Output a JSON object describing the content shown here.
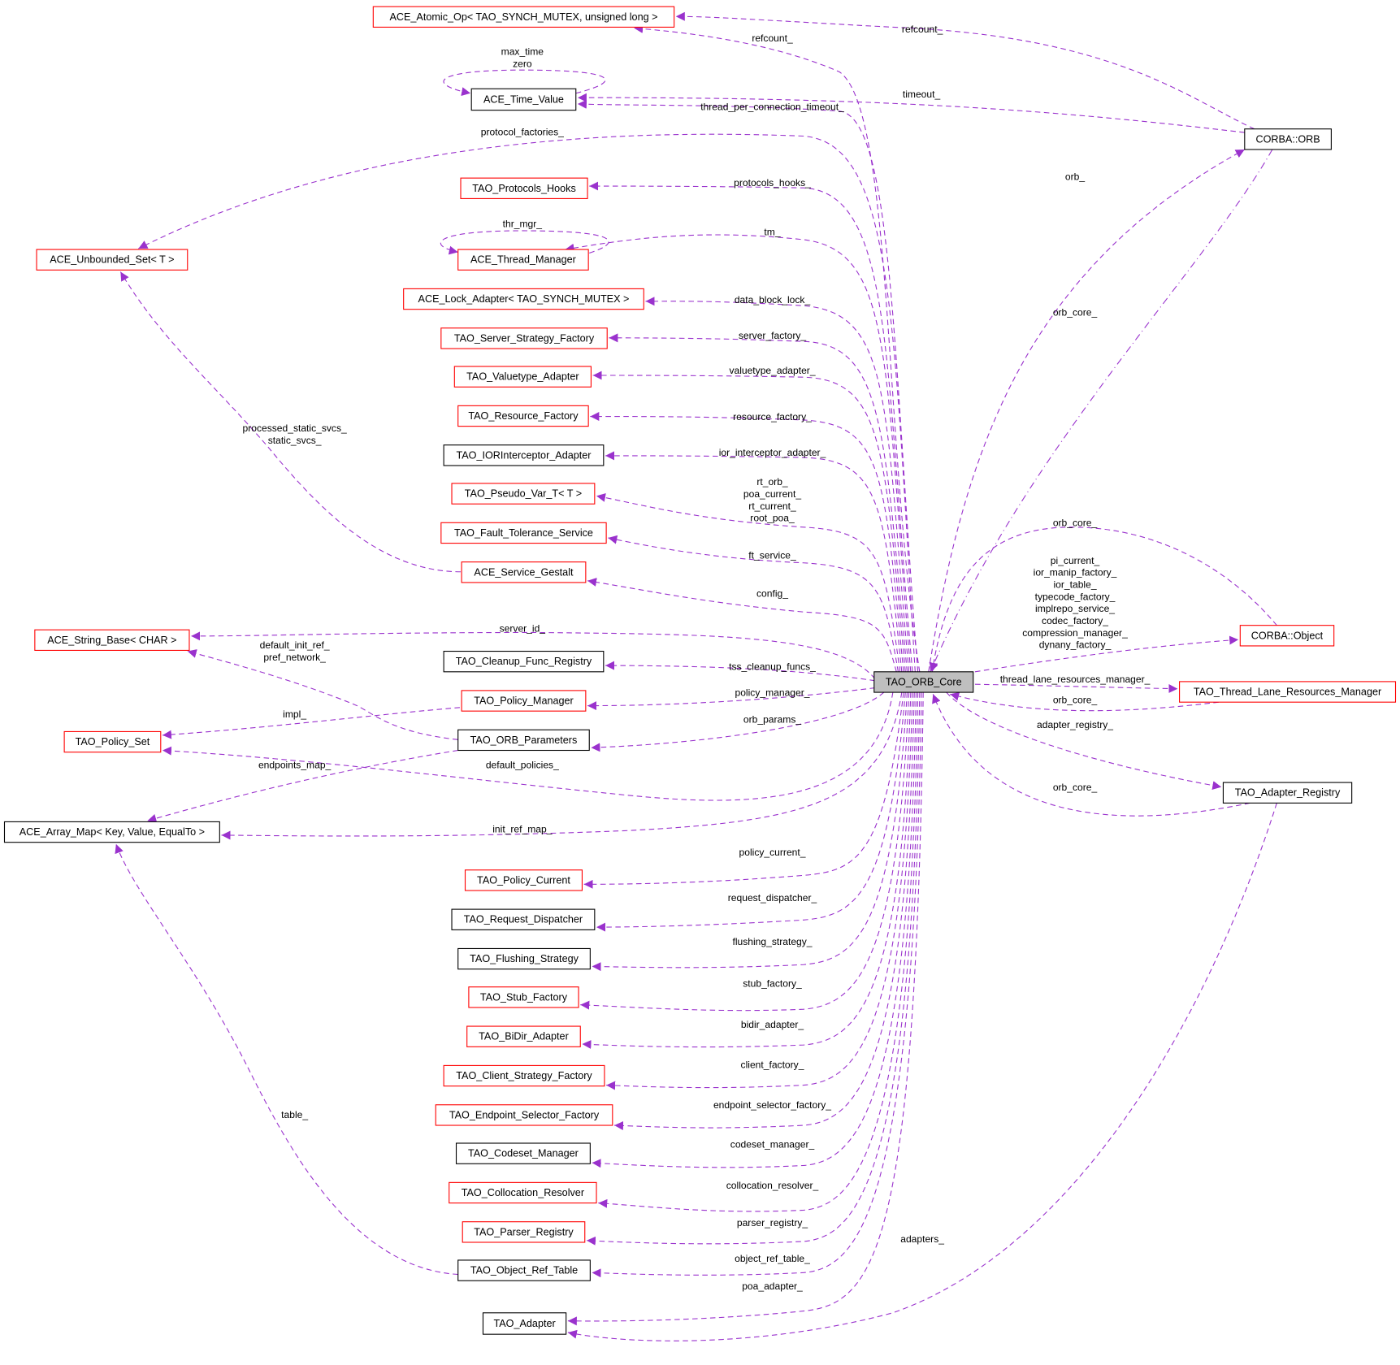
{
  "colors": {
    "edge": "#9a32cd",
    "documented_border": "#000000",
    "undocumented_border": "#ff0000",
    "focus_fill": "#bfbfbf"
  },
  "nodes": [
    {
      "label": "ACE_Atomic_Op< TAO_SYNCH_MUTEX, unsigned long >",
      "border": "red"
    },
    {
      "label": "ACE_Time_Value",
      "border": "black"
    },
    {
      "label": "CORBA::ORB",
      "border": "black"
    },
    {
      "label": "TAO_Protocols_Hooks",
      "border": "red"
    },
    {
      "label": "ACE_Unbounded_Set< T >",
      "border": "red"
    },
    {
      "label": "ACE_Thread_Manager",
      "border": "red"
    },
    {
      "label": "ACE_Lock_Adapter< TAO_SYNCH_MUTEX >",
      "border": "red"
    },
    {
      "label": "TAO_Server_Strategy_Factory",
      "border": "red"
    },
    {
      "label": "TAO_Valuetype_Adapter",
      "border": "red"
    },
    {
      "label": "TAO_Resource_Factory",
      "border": "red"
    },
    {
      "label": "TAO_IORInterceptor_Adapter",
      "border": "black"
    },
    {
      "label": "TAO_Pseudo_Var_T< T >",
      "border": "red"
    },
    {
      "label": "TAO_Fault_Tolerance_Service",
      "border": "red"
    },
    {
      "label": "ACE_Service_Gestalt",
      "border": "red"
    },
    {
      "label": "ACE_String_Base< CHAR >",
      "border": "red"
    },
    {
      "label": "CORBA::Object",
      "border": "red"
    },
    {
      "label": "TAO_Cleanup_Func_Registry",
      "border": "black"
    },
    {
      "label": "TAO_ORB_Core",
      "border": "black",
      "focus": true
    },
    {
      "label": "TAO_Thread_Lane_Resources_Manager",
      "border": "red"
    },
    {
      "label": "TAO_Policy_Manager",
      "border": "red"
    },
    {
      "label": "TAO_Policy_Set",
      "border": "red"
    },
    {
      "label": "TAO_ORB_Parameters",
      "border": "black"
    },
    {
      "label": "TAO_Adapter_Registry",
      "border": "black"
    },
    {
      "label": "ACE_Array_Map< Key, Value, EqualTo >",
      "border": "black"
    },
    {
      "label": "TAO_Policy_Current",
      "border": "red"
    },
    {
      "label": "TAO_Request_Dispatcher",
      "border": "black"
    },
    {
      "label": "TAO_Flushing_Strategy",
      "border": "black"
    },
    {
      "label": "TAO_Stub_Factory",
      "border": "red"
    },
    {
      "label": "TAO_BiDir_Adapter",
      "border": "red"
    },
    {
      "label": "TAO_Client_Strategy_Factory",
      "border": "red"
    },
    {
      "label": "TAO_Endpoint_Selector_Factory",
      "border": "red"
    },
    {
      "label": "TAO_Codeset_Manager",
      "border": "black"
    },
    {
      "label": "TAO_Collocation_Resolver",
      "border": "red"
    },
    {
      "label": "TAO_Parser_Registry",
      "border": "red"
    },
    {
      "label": "TAO_Object_Ref_Table",
      "border": "black"
    },
    {
      "label": "TAO_Adapter",
      "border": "black"
    }
  ],
  "edges": [
    {
      "from": "CORBA::ORB",
      "to": "ACE_Atomic_Op< TAO_SYNCH_MUTEX, unsigned long >",
      "label": [
        "refcount_"
      ]
    },
    {
      "from": "TAO_ORB_Core",
      "to": "ACE_Atomic_Op< TAO_SYNCH_MUTEX, unsigned long >",
      "label": [
        "refcount_"
      ]
    },
    {
      "from": "ACE_Time_Value",
      "to": "ACE_Time_Value",
      "label": [
        "max_time",
        "zero"
      ]
    },
    {
      "from": "CORBA::ORB",
      "to": "ACE_Time_Value",
      "label": [
        "timeout_"
      ]
    },
    {
      "from": "TAO_ORB_Core",
      "to": "ACE_Time_Value",
      "label": [
        "thread_per_connection_timeout_"
      ]
    },
    {
      "from": "TAO_ORB_Core",
      "to": "ACE_Unbounded_Set< T >",
      "label": [
        "protocol_factories_"
      ]
    },
    {
      "from": "TAO_ORB_Core",
      "to": "TAO_Protocols_Hooks",
      "label": [
        "protocols_hooks_"
      ]
    },
    {
      "from": "ACE_Thread_Manager",
      "to": "ACE_Thread_Manager",
      "label": [
        "thr_mgr_"
      ]
    },
    {
      "from": "TAO_ORB_Core",
      "to": "ACE_Thread_Manager",
      "label": [
        "tm_"
      ]
    },
    {
      "from": "TAO_ORB_Core",
      "to": "ACE_Lock_Adapter< TAO_SYNCH_MUTEX >",
      "label": [
        "data_block_lock_"
      ]
    },
    {
      "from": "TAO_ORB_Core",
      "to": "TAO_Server_Strategy_Factory",
      "label": [
        "server_factory_"
      ]
    },
    {
      "from": "TAO_ORB_Core",
      "to": "TAO_Valuetype_Adapter",
      "label": [
        "valuetype_adapter_"
      ]
    },
    {
      "from": "TAO_ORB_Core",
      "to": "TAO_Resource_Factory",
      "label": [
        "resource_factory_"
      ]
    },
    {
      "from": "TAO_ORB_Core",
      "to": "TAO_IORInterceptor_Adapter",
      "label": [
        "ior_interceptor_adapter_"
      ]
    },
    {
      "from": "TAO_ORB_Core",
      "to": "TAO_Pseudo_Var_T< T >",
      "label": [
        "rt_orb_",
        "poa_current_",
        "rt_current_",
        "root_poa_"
      ]
    },
    {
      "from": "TAO_ORB_Core",
      "to": "TAO_Fault_Tolerance_Service",
      "label": [
        "ft_service_"
      ]
    },
    {
      "from": "TAO_ORB_Core",
      "to": "ACE_Service_Gestalt",
      "label": [
        "config_"
      ]
    },
    {
      "from": "ACE_Service_Gestalt",
      "to": "ACE_Unbounded_Set< T >",
      "label": [
        "processed_static_svcs_",
        "static_svcs_"
      ]
    },
    {
      "from": "TAO_ORB_Core",
      "to": "ACE_String_Base< CHAR >",
      "label": [
        "server_id_"
      ]
    },
    {
      "from": "TAO_ORB_Parameters",
      "to": "ACE_String_Base< CHAR >",
      "label": [
        "default_init_ref_",
        "pref_network_"
      ]
    },
    {
      "from": "TAO_ORB_Core",
      "to": "TAO_Cleanup_Func_Registry",
      "label": [
        "tss_cleanup_funcs_"
      ]
    },
    {
      "from": "TAO_ORB_Core",
      "to": "TAO_Policy_Manager",
      "label": [
        "policy_manager_"
      ]
    },
    {
      "from": "TAO_Policy_Manager",
      "to": "TAO_Policy_Set",
      "label": [
        "impl_"
      ]
    },
    {
      "from": "TAO_ORB_Core",
      "to": "TAO_ORB_Parameters",
      "label": [
        "orb_params_"
      ]
    },
    {
      "from": "TAO_ORB_Core",
      "to": "TAO_Policy_Set",
      "label": [
        "default_policies_"
      ]
    },
    {
      "from": "TAO_ORB_Parameters",
      "to": "ACE_Array_Map< Key, Value, EqualTo >",
      "label": [
        "endpoints_map_"
      ]
    },
    {
      "from": "TAO_ORB_Core",
      "to": "ACE_Array_Map< Key, Value, EqualTo >",
      "label": [
        "init_ref_map_"
      ]
    },
    {
      "from": "TAO_Object_Ref_Table",
      "to": "ACE_Array_Map< Key, Value, EqualTo >",
      "label": [
        "table_"
      ]
    },
    {
      "from": "TAO_ORB_Core",
      "to": "TAO_Policy_Current",
      "label": [
        "policy_current_"
      ]
    },
    {
      "from": "TAO_ORB_Core",
      "to": "TAO_Request_Dispatcher",
      "label": [
        "request_dispatcher_"
      ]
    },
    {
      "from": "TAO_ORB_Core",
      "to": "TAO_Flushing_Strategy",
      "label": [
        "flushing_strategy_"
      ]
    },
    {
      "from": "TAO_ORB_Core",
      "to": "TAO_Stub_Factory",
      "label": [
        "stub_factory_"
      ]
    },
    {
      "from": "TAO_ORB_Core",
      "to": "TAO_BiDir_Adapter",
      "label": [
        "bidir_adapter_"
      ]
    },
    {
      "from": "TAO_ORB_Core",
      "to": "TAO_Client_Strategy_Factory",
      "label": [
        "client_factory_"
      ]
    },
    {
      "from": "TAO_ORB_Core",
      "to": "TAO_Endpoint_Selector_Factory",
      "label": [
        "endpoint_selector_factory_"
      ]
    },
    {
      "from": "TAO_ORB_Core",
      "to": "TAO_Codeset_Manager",
      "label": [
        "codeset_manager_"
      ]
    },
    {
      "from": "TAO_ORB_Core",
      "to": "TAO_Collocation_Resolver",
      "label": [
        "collocation_resolver_"
      ]
    },
    {
      "from": "TAO_ORB_Core",
      "to": "TAO_Parser_Registry",
      "label": [
        "parser_registry_"
      ]
    },
    {
      "from": "TAO_ORB_Core",
      "to": "TAO_Object_Ref_Table",
      "label": [
        "object_ref_table_"
      ]
    },
    {
      "from": "TAO_ORB_Core",
      "to": "TAO_Adapter",
      "label": [
        "poa_adapter_"
      ]
    },
    {
      "from": "TAO_Adapter_Registry",
      "to": "TAO_Adapter",
      "label": [
        "adapters_"
      ]
    },
    {
      "from": "TAO_ORB_Core",
      "to": "CORBA::ORB",
      "label": [
        "orb_"
      ]
    },
    {
      "from": "CORBA::ORB",
      "to": "TAO_ORB_Core",
      "label": [
        "orb_core_"
      ]
    },
    {
      "from": "CORBA::Object",
      "to": "TAO_ORB_Core",
      "label": [
        "orb_core_"
      ]
    },
    {
      "from": "TAO_ORB_Core",
      "to": "CORBA::Object",
      "label": [
        "pi_current_",
        "ior_manip_factory_",
        "ior_table_",
        "typecode_factory_",
        "implrepo_service_",
        "codec_factory_",
        "compression_manager_",
        "dynany_factory_"
      ]
    },
    {
      "from": "TAO_ORB_Core",
      "to": "TAO_Thread_Lane_Resources_Manager",
      "label": [
        "thread_lane_resources_manager_"
      ]
    },
    {
      "from": "TAO_Thread_Lane_Resources_Manager",
      "to": "TAO_ORB_Core",
      "label": [
        "orb_core_"
      ]
    },
    {
      "from": "TAO_ORB_Core",
      "to": "TAO_Adapter_Registry",
      "label": [
        "adapter_registry_"
      ]
    },
    {
      "from": "TAO_Adapter_Registry",
      "to": "TAO_ORB_Core",
      "label": [
        "orb_core_"
      ]
    }
  ]
}
